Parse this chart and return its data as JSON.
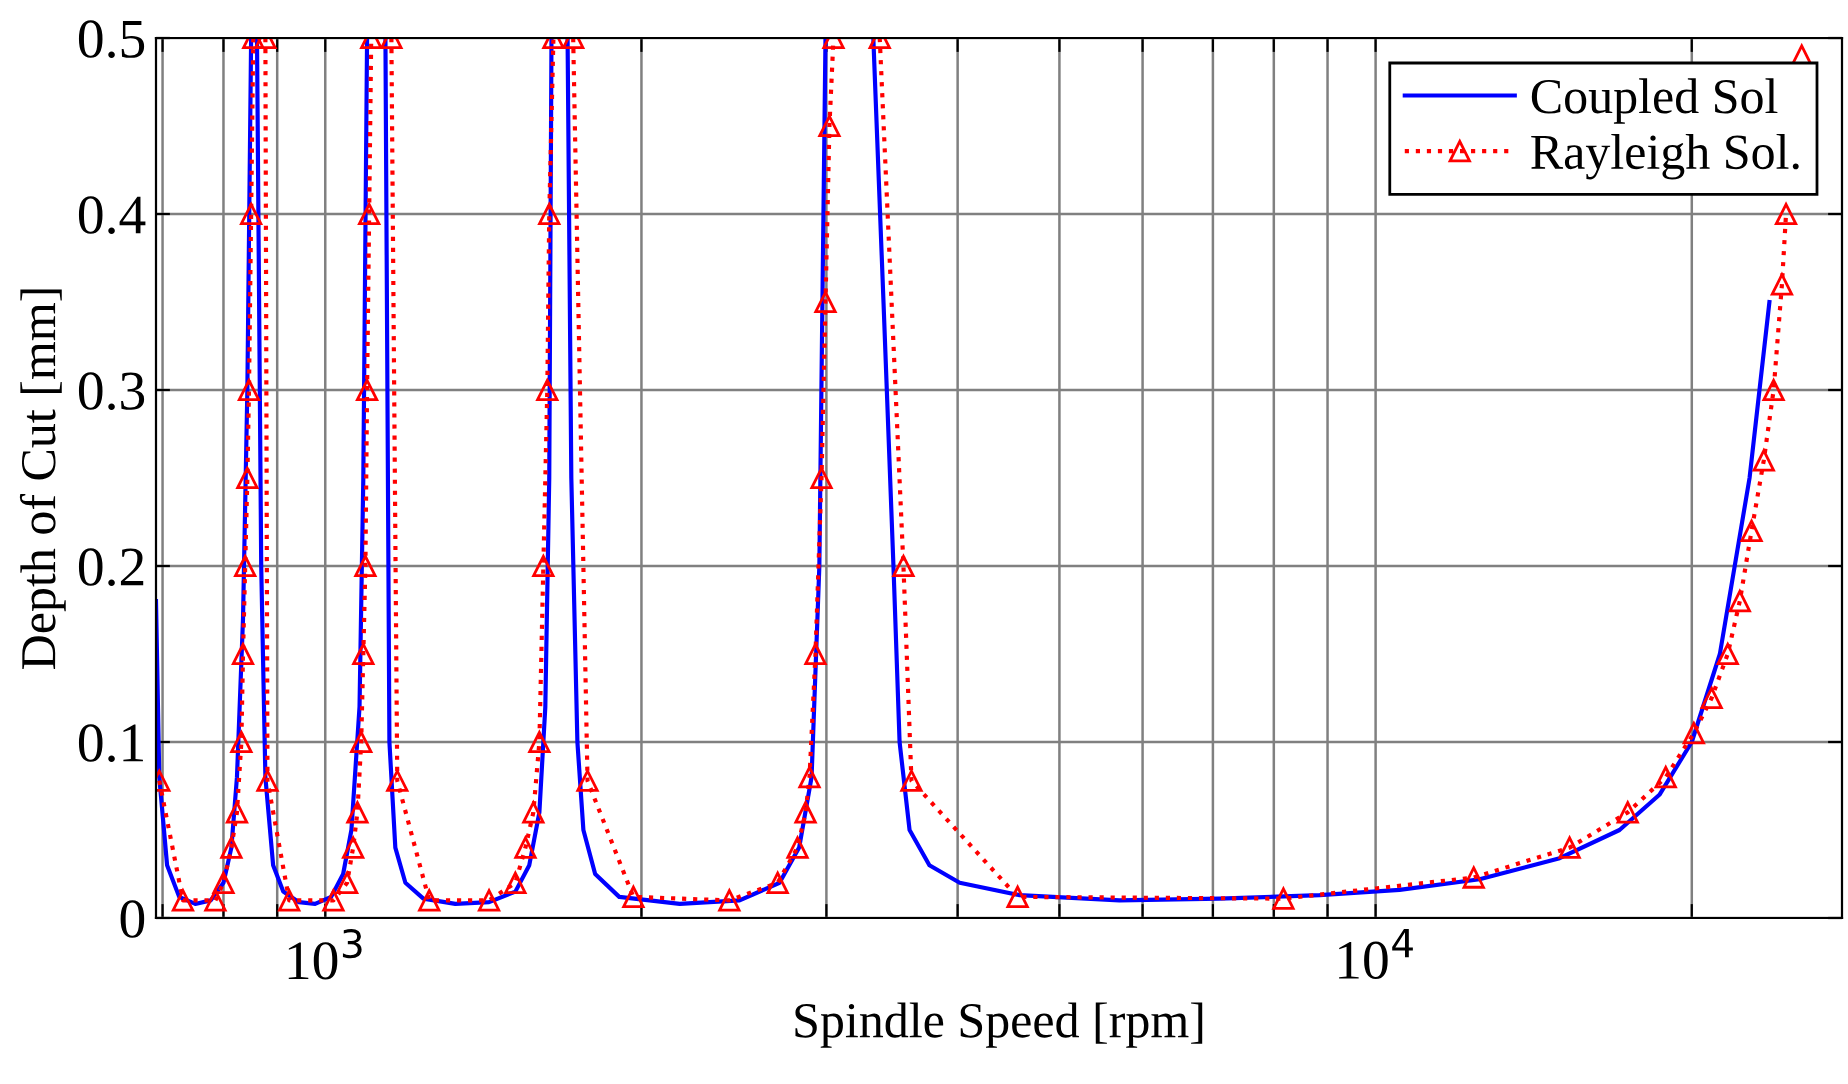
{
  "chart_data": {
    "type": "line",
    "xlabel": "Spindle Speed [rpm]",
    "ylabel": "Depth of Cut [mm]",
    "log": "x",
    "xlim": [
      690,
      27800
    ],
    "ylim": [
      0,
      0.5
    ],
    "xticks": [
      {
        "value": 700,
        "label": null
      },
      {
        "value": 800,
        "label": null
      },
      {
        "value": 900,
        "label": null
      },
      {
        "value": 1000,
        "label": "10$^{3}$"
      },
      {
        "value": 2000,
        "label": null
      },
      {
        "value": 3000,
        "label": null
      },
      {
        "value": 4000,
        "label": null
      },
      {
        "value": 5000,
        "label": null
      },
      {
        "value": 6000,
        "label": null
      },
      {
        "value": 7000,
        "label": null
      },
      {
        "value": 8000,
        "label": null
      },
      {
        "value": 9000,
        "label": null
      },
      {
        "value": 10000,
        "label": "10$^{4}$"
      },
      {
        "value": 20000,
        "label": null
      }
    ],
    "yticks": [
      0,
      0.1,
      0.2,
      0.3,
      0.4,
      0.5
    ],
    "grid": true,
    "legend": "top right",
    "series": [
      {
        "name": "Coupled Sol",
        "color": "#0000ff",
        "line_style": "solid",
        "marker": "none",
        "x": [
          690,
          695,
          707,
          726,
          752,
          778,
          800,
          814,
          824,
          835,
          843,
          850,
          855,
          861,
          869,
          877,
          892,
          912,
          944,
          978,
          1013,
          1040,
          1059,
          1078,
          1087,
          1096,
          1118,
          1141,
          1151,
          1166,
          1192,
          1240,
          1330,
          1432,
          1517,
          1564,
          1599,
          1620,
          1634,
          1642,
          1670,
          1701,
          1715,
          1738,
          1761,
          1807,
          1905,
          2175,
          2480,
          2707,
          2826,
          2904,
          2954,
          2994,
          3150,
          3325,
          3400,
          3475,
          3522,
          3600,
          3760,
          4018,
          4581,
          5703,
          7101,
          8846,
          10540,
          12560,
          14970,
          17070,
          18630,
          20000,
          21270,
          22700,
          23710
        ],
        "values": [
          0.18,
          0.08,
          0.03,
          0.012,
          0.008,
          0.01,
          0.02,
          0.04,
          0.08,
          0.17,
          0.3,
          0.5,
          null,
          0.5,
          0.2,
          0.08,
          0.03,
          0.015,
          0.009,
          0.008,
          0.012,
          0.025,
          0.05,
          0.12,
          0.25,
          0.5,
          null,
          0.5,
          0.1,
          0.04,
          0.02,
          0.011,
          0.008,
          0.009,
          0.015,
          0.03,
          0.06,
          0.12,
          0.25,
          0.5,
          null,
          0.5,
          0.25,
          0.1,
          0.05,
          0.025,
          0.012,
          0.008,
          0.01,
          0.02,
          0.04,
          0.08,
          0.2,
          0.5,
          null,
          0.5,
          0.35,
          0.2,
          0.1,
          0.05,
          0.03,
          0.02,
          0.013,
          0.01,
          0.011,
          0.013,
          0.016,
          0.022,
          0.034,
          0.05,
          0.07,
          0.1,
          0.15,
          0.25,
          0.35
        ]
      },
      {
        "name": "Rayleigh Sol.",
        "color": "#ff0000",
        "line_style": "dotted",
        "marker": "triangle",
        "x": [
          695,
          732,
          786,
          800,
          814,
          824,
          832,
          835,
          839,
          843,
          846,
          850,
          854,
          865,
          877,
          881,
          924,
          1018,
          1049,
          1063,
          1073,
          1082,
          1087,
          1092,
          1096,
          1101,
          1106,
          1130,
          1156,
          1171,
          1256,
          1432,
          1517,
          1551,
          1578,
          1599,
          1613,
          1627,
          1634,
          1649,
          1685,
          1722,
          1777,
          1965,
          2425,
          2696,
          2816,
          2866,
          2891,
          2929,
          2968,
          2994,
          3020,
          3047,
          3200,
          3372,
          3552,
          3615,
          4562,
          8170,
          12400,
          15300,
          17380,
          18890,
          20090,
          20890,
          21640,
          22220,
          22800,
          23420,
          23930,
          24370,
          24590,
          24900,
          25450
        ],
        "values": [
          0.078,
          0.01,
          0.01,
          0.02,
          0.04,
          0.06,
          0.1,
          0.15,
          0.2,
          0.25,
          0.3,
          0.4,
          0.5,
          null,
          0.5,
          0.078,
          0.01,
          0.01,
          0.02,
          0.04,
          0.06,
          0.1,
          0.15,
          0.2,
          0.3,
          0.4,
          0.5,
          null,
          0.5,
          0.078,
          0.01,
          0.01,
          0.02,
          0.04,
          0.06,
          0.1,
          0.2,
          0.3,
          0.4,
          0.5,
          null,
          0.5,
          0.078,
          0.012,
          0.01,
          0.02,
          0.04,
          0.06,
          0.08,
          0.15,
          0.25,
          0.35,
          0.45,
          0.5,
          null,
          0.5,
          0.2,
          0.078,
          0.012,
          0.011,
          0.023,
          0.04,
          0.06,
          0.08,
          0.105,
          0.125,
          0.15,
          0.18,
          0.22,
          0.26,
          0.3,
          0.36,
          0.4,
          null,
          0.49
        ]
      }
    ]
  }
}
